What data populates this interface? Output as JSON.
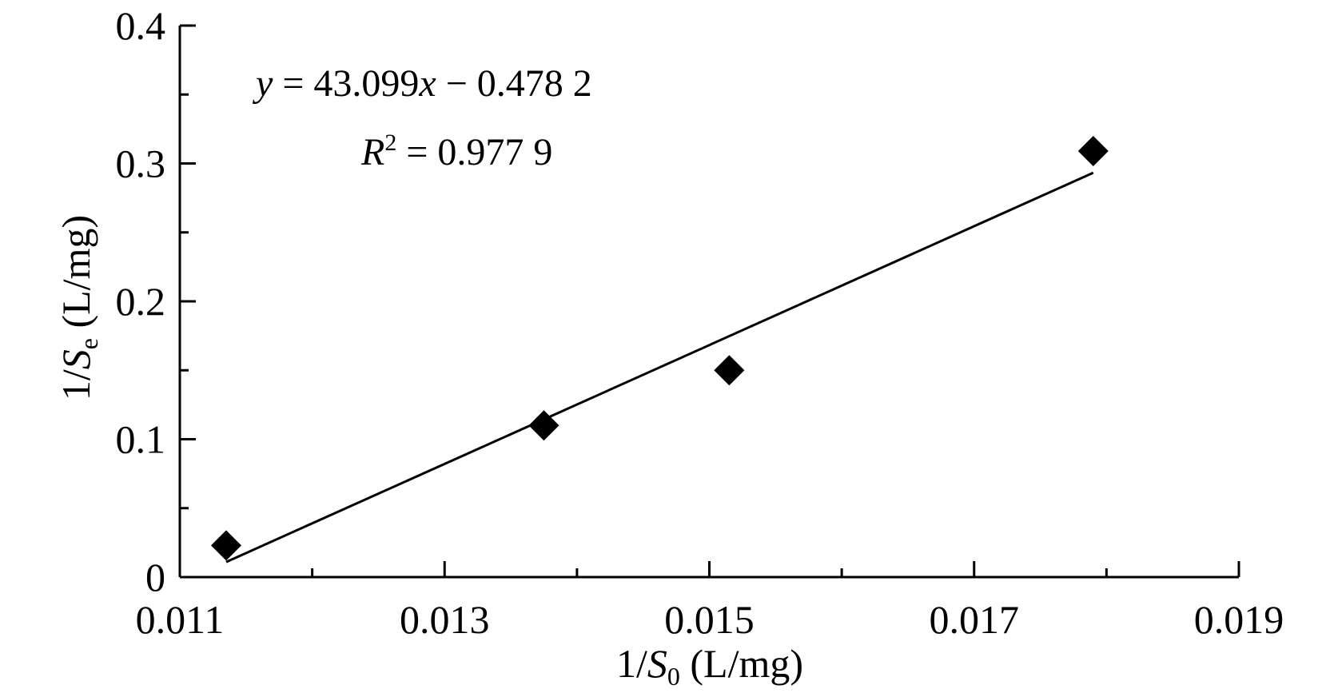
{
  "chart_data": {
    "type": "scatter",
    "xlabel": {
      "prefix": "1/",
      "var": "S",
      "sub": "0",
      "suffix": " (L/mg)"
    },
    "ylabel": {
      "prefix": "1/",
      "var": "S",
      "sub": "e",
      "suffix": " (L/mg)"
    },
    "xlim": [
      0.011,
      0.019
    ],
    "ylim": [
      0,
      0.4
    ],
    "x_ticks": [
      0.011,
      0.013,
      0.015,
      0.017,
      0.019
    ],
    "x_tick_labels": [
      "0.011",
      "0.013",
      "0.015",
      "0.017",
      "0.019"
    ],
    "x_minor_ticks": [
      0.012,
      0.014,
      0.016,
      0.018
    ],
    "y_ticks": [
      0,
      0.1,
      0.2,
      0.3,
      0.4
    ],
    "y_tick_labels": [
      "0",
      "0.1",
      "0.2",
      "0.3",
      "0.4"
    ],
    "y_minor_ticks": [
      0.05,
      0.15,
      0.25,
      0.35
    ],
    "grid": false,
    "points": [
      {
        "x": 0.01135,
        "y": 0.023
      },
      {
        "x": 0.01375,
        "y": 0.11
      },
      {
        "x": 0.01515,
        "y": 0.15
      },
      {
        "x": 0.0179,
        "y": 0.309
      }
    ],
    "trendline": {
      "slope": 43.099,
      "intercept": -0.4782,
      "x_range": [
        0.01135,
        0.0179
      ]
    },
    "equation": {
      "y_var": "y",
      "eq_text": " = 43.099",
      "x_var": "x",
      "rest": " − 0.478 2"
    },
    "r2": {
      "var": "R",
      "sup": "2",
      "rest": " = 0.977 9"
    },
    "marker": "diamond",
    "color": "#000000"
  }
}
